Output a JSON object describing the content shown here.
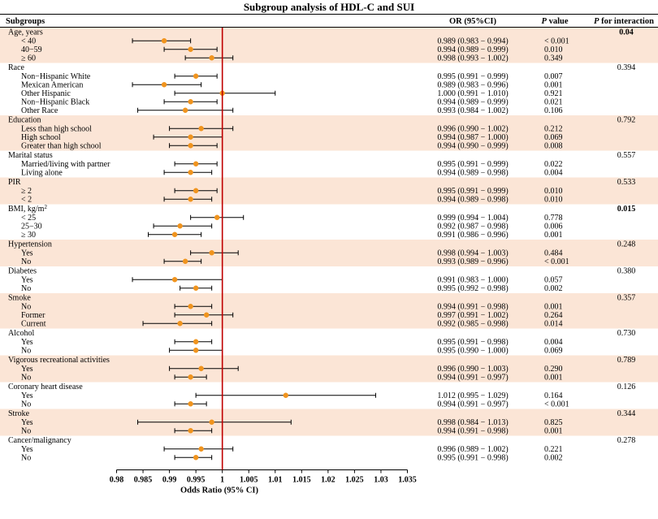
{
  "chart_data": {
    "type": "forest",
    "title": "Subgroup analysis of HDL-C and SUI",
    "xlabel": "Odds Ratio (95% CI)",
    "xlim": [
      0.98,
      1.035
    ],
    "x_ticks": [
      0.98,
      0.985,
      0.99,
      0.995,
      1,
      1.005,
      1.01,
      1.015,
      1.02,
      1.025,
      1.03,
      1.035
    ],
    "x_tick_labels": [
      "0.98",
      "0.985",
      "0.99",
      "0.995",
      "1",
      "1.005",
      "1.01",
      "1.015",
      "1.02",
      "1.025",
      "1.03",
      "1.035"
    ],
    "reference_line": 1,
    "headers": {
      "subgroups": "Subgroups",
      "or_ci": "OR (95%CI)",
      "p_value_italic": "P",
      "p_value_rest": " value",
      "p_inter_italic": "P",
      "p_inter_rest": " for interaction"
    },
    "colors": {
      "band": "#fbe5d6",
      "point": "#f0941e",
      "reference_line": "#c00000",
      "ci_line": "#000000"
    },
    "groups": [
      {
        "label": "Age, years",
        "p_interaction": "0.04",
        "bold": true,
        "items": [
          {
            "label": "< 40",
            "or": 0.989,
            "lo": 0.983,
            "hi": 0.994,
            "ci_text": "0.989 (0.983 − 0.994)",
            "p": "< 0.001"
          },
          {
            "label": "40−59",
            "or": 0.994,
            "lo": 0.989,
            "hi": 0.999,
            "ci_text": "0.994 (0.989 − 0.999)",
            "p": "0.010"
          },
          {
            "label": "≥ 60",
            "or": 0.998,
            "lo": 0.993,
            "hi": 1.002,
            "ci_text": "0.998 (0.993 − 1.002)",
            "p": "0.349"
          }
        ]
      },
      {
        "label": "Race",
        "p_interaction": "0.394",
        "items": [
          {
            "label": "Non−Hispanic White",
            "or": 0.995,
            "lo": 0.991,
            "hi": 0.999,
            "ci_text": "0.995 (0.991 − 0.999)",
            "p": "0.007"
          },
          {
            "label": "Mexican American",
            "or": 0.989,
            "lo": 0.983,
            "hi": 0.996,
            "ci_text": "0.989 (0.983 − 0.996)",
            "p": "0.001"
          },
          {
            "label": "Other Hispanic",
            "or": 1.0,
            "lo": 0.991,
            "hi": 1.01,
            "ci_text": "1.000 (0.991 − 1.010)",
            "p": "0.921"
          },
          {
            "label": "Non−Hispanic Black",
            "or": 0.994,
            "lo": 0.989,
            "hi": 0.999,
            "ci_text": "0.994 (0.989 − 0.999)",
            "p": "0.021"
          },
          {
            "label": "Other Race",
            "or": 0.993,
            "lo": 0.984,
            "hi": 1.002,
            "ci_text": "0.993 (0.984 − 1.002)",
            "p": "0.106"
          }
        ]
      },
      {
        "label": "Education",
        "p_interaction": "0.792",
        "items": [
          {
            "label": "Less than high school",
            "or": 0.996,
            "lo": 0.99,
            "hi": 1.002,
            "ci_text": "0.996 (0.990 − 1.002)",
            "p": "0.212"
          },
          {
            "label": "High school",
            "or": 0.994,
            "lo": 0.987,
            "hi": 1.0,
            "ci_text": "0.994 (0.987 − 1.000)",
            "p": "0.069"
          },
          {
            "label": "Greater than high school",
            "or": 0.994,
            "lo": 0.99,
            "hi": 0.999,
            "ci_text": "0.994 (0.990 − 0.999)",
            "p": "0.008"
          }
        ]
      },
      {
        "label": "Marital status",
        "p_interaction": "0.557",
        "items": [
          {
            "label": "Married/living with partner",
            "or": 0.995,
            "lo": 0.991,
            "hi": 0.999,
            "ci_text": "0.995 (0.991 − 0.999)",
            "p": "0.022"
          },
          {
            "label": "Living alone",
            "or": 0.994,
            "lo": 0.989,
            "hi": 0.998,
            "ci_text": "0.994 (0.989 − 0.998)",
            "p": "0.004"
          }
        ]
      },
      {
        "label": "PIR",
        "p_interaction": "0.533",
        "items": [
          {
            "label": "≥ 2",
            "or": 0.995,
            "lo": 0.991,
            "hi": 0.999,
            "ci_text": "0.995 (0.991 − 0.999)",
            "p": "0.010"
          },
          {
            "label": "< 2",
            "or": 0.994,
            "lo": 0.989,
            "hi": 0.998,
            "ci_text": "0.994 (0.989 − 0.998)",
            "p": "0.010"
          }
        ]
      },
      {
        "label": "BMI, kg/m",
        "label_sup": "2",
        "p_interaction": "0.015",
        "bold": true,
        "items": [
          {
            "label": "< 25",
            "or": 0.999,
            "lo": 0.994,
            "hi": 1.004,
            "ci_text": "0.999 (0.994 − 1.004)",
            "p": "0.778"
          },
          {
            "label": "25−30",
            "or": 0.992,
            "lo": 0.987,
            "hi": 0.998,
            "ci_text": "0.992 (0.987 − 0.998)",
            "p": "0.006"
          },
          {
            "label": "≥ 30",
            "or": 0.991,
            "lo": 0.986,
            "hi": 0.996,
            "ci_text": "0.991 (0.986 − 0.996)",
            "p": "0.001"
          }
        ]
      },
      {
        "label": "Hypertension",
        "p_interaction": "0.248",
        "items": [
          {
            "label": "Yes",
            "or": 0.998,
            "lo": 0.994,
            "hi": 1.003,
            "ci_text": "0.998 (0.994 − 1.003)",
            "p": "0.484"
          },
          {
            "label": "No",
            "or": 0.993,
            "lo": 0.989,
            "hi": 0.996,
            "ci_text": "0.993 (0.989 − 0.996)",
            "p": "< 0.001"
          }
        ]
      },
      {
        "label": "Diabetes",
        "p_interaction": "0.380",
        "items": [
          {
            "label": "Yes",
            "or": 0.991,
            "lo": 0.983,
            "hi": 1.0,
            "ci_text": "0.991 (0.983 − 1.000)",
            "p": "0.057"
          },
          {
            "label": "No",
            "or": 0.995,
            "lo": 0.992,
            "hi": 0.998,
            "ci_text": "0.995 (0.992 − 0.998)",
            "p": "0.002"
          }
        ]
      },
      {
        "label": "Smoke",
        "p_interaction": "0.357",
        "items": [
          {
            "label": "No",
            "or": 0.994,
            "lo": 0.991,
            "hi": 0.998,
            "ci_text": "0.994 (0.991 − 0.998)",
            "p": "0.001"
          },
          {
            "label": "Former",
            "or": 0.997,
            "lo": 0.991,
            "hi": 1.002,
            "ci_text": "0.997 (0.991 − 1.002)",
            "p": "0.264"
          },
          {
            "label": "Current",
            "or": 0.992,
            "lo": 0.985,
            "hi": 0.998,
            "ci_text": "0.992 (0.985 − 0.998)",
            "p": "0.014"
          }
        ]
      },
      {
        "label": "Alcohol",
        "p_interaction": "0.730",
        "items": [
          {
            "label": "Yes",
            "or": 0.995,
            "lo": 0.991,
            "hi": 0.998,
            "ci_text": "0.995 (0.991 − 0.998)",
            "p": "0.004"
          },
          {
            "label": "No",
            "or": 0.995,
            "lo": 0.99,
            "hi": 1.0,
            "ci_text": "0.995 (0.990 − 1.000)",
            "p": "0.069"
          }
        ]
      },
      {
        "label": "Vigorous recreational activities",
        "p_interaction": "0.789",
        "items": [
          {
            "label": "Yes",
            "or": 0.996,
            "lo": 0.99,
            "hi": 1.003,
            "ci_text": "0.996 (0.990 − 1.003)",
            "p": "0.290"
          },
          {
            "label": "No",
            "or": 0.994,
            "lo": 0.991,
            "hi": 0.997,
            "ci_text": "0.994 (0.991 − 0.997)",
            "p": "0.001"
          }
        ]
      },
      {
        "label": "Coronary heart disease",
        "p_interaction": "0.126",
        "items": [
          {
            "label": "Yes",
            "or": 1.012,
            "lo": 0.995,
            "hi": 1.029,
            "ci_text": "1.012 (0.995 − 1.029)",
            "p": "0.164"
          },
          {
            "label": "No",
            "or": 0.994,
            "lo": 0.991,
            "hi": 0.997,
            "ci_text": "0.994 (0.991 − 0.997)",
            "p": "< 0.001"
          }
        ]
      },
      {
        "label": "Stroke",
        "p_interaction": "0.344",
        "items": [
          {
            "label": "Yes",
            "or": 0.998,
            "lo": 0.984,
            "hi": 1.013,
            "ci_text": "0.998 (0.984 − 1.013)",
            "p": "0.825"
          },
          {
            "label": "No",
            "or": 0.994,
            "lo": 0.991,
            "hi": 0.998,
            "ci_text": "0.994 (0.991 − 0.998)",
            "p": "0.001"
          }
        ]
      },
      {
        "label": "Cancer/malignancy",
        "p_interaction": "0.278",
        "items": [
          {
            "label": "Yes",
            "or": 0.996,
            "lo": 0.989,
            "hi": 1.002,
            "ci_text": "0.996 (0.989 − 1.002)",
            "p": "0.221"
          },
          {
            "label": "No",
            "or": 0.995,
            "lo": 0.991,
            "hi": 0.998,
            "ci_text": "0.995 (0.991 − 0.998)",
            "p": "0.002"
          }
        ]
      }
    ]
  }
}
